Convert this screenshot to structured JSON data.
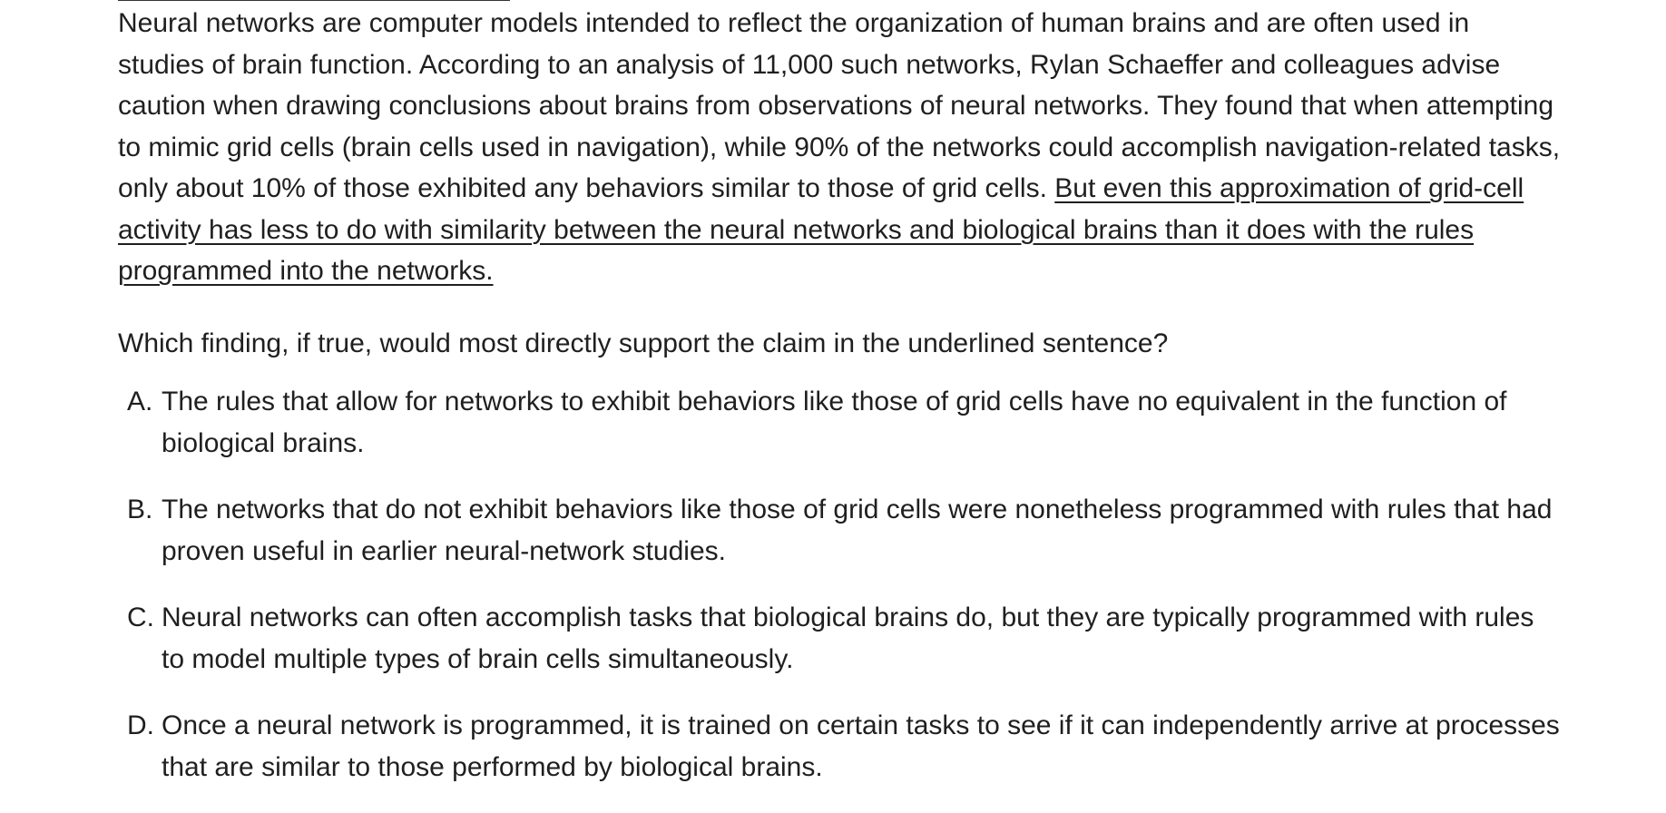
{
  "passage": {
    "plain": "Neural networks are computer models intended to reflect the organization of human brains and are often used in studies of brain function. According to an analysis of 11,000 such networks, Rylan Schaeffer and colleagues advise caution when drawing conclusions about brains from observations of neural networks. They found that when attempting to mimic grid cells (brain cells used in navigation), while 90% of the networks could accomplish navigation-related tasks, only about 10% of those exhibited any behaviors similar to those of grid cells. ",
    "underlined": "But even this approximation of grid-cell activity has less to do with similarity between the neural networks and biological brains than it does with the rules programmed into the networks."
  },
  "question": "Which finding, if true, would most directly support the claim in the underlined sentence?",
  "choices": [
    {
      "letter": "A.",
      "text": "The rules that allow for networks to exhibit behaviors like those of grid cells have no equivalent in the function of biological brains."
    },
    {
      "letter": "B.",
      "text": "The networks that do not exhibit behaviors like those of grid cells were nonetheless programmed with rules that had proven useful in earlier neural-network studies."
    },
    {
      "letter": "C.",
      "text": "Neural networks can often accomplish tasks that biological brains do, but they are typically programmed with rules to model multiple types of brain cells simultaneously."
    },
    {
      "letter": "D.",
      "text": "Once a neural network is programmed, it is trained on certain tasks to see if it can independently arrive at processes that are similar to those performed by biological brains."
    }
  ]
}
